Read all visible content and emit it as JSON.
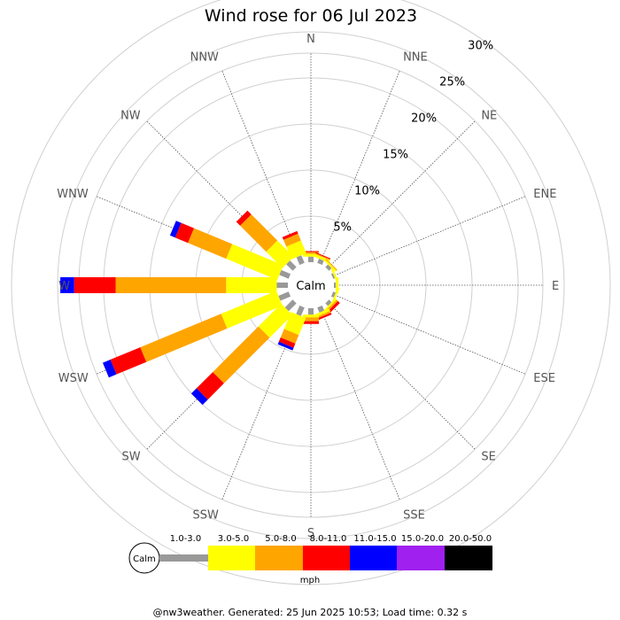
{
  "chart_data": {
    "type": "wind-rose",
    "title": "Wind rose for 06 Jul 2023",
    "directions": [
      "N",
      "NNE",
      "NE",
      "ENE",
      "E",
      "ESE",
      "SE",
      "SSE",
      "S",
      "SSW",
      "SW",
      "WSW",
      "W",
      "WNW",
      "NW",
      "NNW"
    ],
    "rings": [
      5,
      10,
      15,
      20,
      25,
      30
    ],
    "ring_labels": [
      "5%",
      "10%",
      "15%",
      "20%",
      "25%",
      "30%"
    ],
    "calm_label": "Calm",
    "unit": "mph",
    "speed_bins": [
      {
        "label": "1.0-3.0",
        "color": "#999999"
      },
      {
        "label": "3.0-5.0",
        "color": "#ffff00"
      },
      {
        "label": "5.0-8.0",
        "color": "#ffa500"
      },
      {
        "label": "8.0-11.0",
        "color": "#ff0000"
      },
      {
        "label": "11.0-15.0",
        "color": "#0000ff"
      },
      {
        "label": "15.0-20.0",
        "color": "#a020f0"
      },
      {
        "label": "20.0-50.0",
        "color": "#000000"
      }
    ],
    "series": [
      {
        "direction": "N",
        "values": [
          0.6,
          0.3,
          0.2,
          0.1,
          0,
          0,
          0
        ]
      },
      {
        "direction": "NNE",
        "values": [
          0.5,
          0.3,
          0.1,
          0.1,
          0,
          0,
          0
        ]
      },
      {
        "direction": "NE",
        "values": [
          0.4,
          0.2,
          0.1,
          0,
          0,
          0,
          0
        ]
      },
      {
        "direction": "ENE",
        "values": [
          0.2,
          0.2,
          0,
          0,
          0,
          0,
          0
        ]
      },
      {
        "direction": "E",
        "values": [
          0.2,
          0.3,
          0,
          0,
          0,
          0,
          0
        ]
      },
      {
        "direction": "ESE",
        "values": [
          0.3,
          0.2,
          0,
          0,
          0,
          0,
          0
        ]
      },
      {
        "direction": "SE",
        "values": [
          0.4,
          0.2,
          0.2,
          0.3,
          0,
          0,
          0
        ]
      },
      {
        "direction": "SSE",
        "values": [
          0.6,
          0.3,
          0.2,
          0.2,
          0,
          0,
          0
        ]
      },
      {
        "direction": "S",
        "values": [
          0.7,
          0.3,
          0.4,
          0.3,
          0,
          0,
          0
        ]
      },
      {
        "direction": "SSW",
        "values": [
          1.0,
          2.0,
          1.0,
          0.5,
          0.3,
          0,
          0
        ]
      },
      {
        "direction": "SW",
        "values": [
          1.2,
          3.5,
          7.0,
          2.5,
          0.8,
          0,
          0
        ]
      },
      {
        "direction": "WSW",
        "values": [
          1.2,
          6.5,
          9.5,
          3.5,
          0.9,
          0,
          0
        ]
      },
      {
        "direction": "W",
        "values": [
          1.2,
          5.5,
          12.0,
          4.5,
          1.5,
          0,
          0
        ]
      },
      {
        "direction": "WNW",
        "values": [
          1.1,
          6.0,
          4.5,
          1.5,
          0.6,
          0,
          0
        ]
      },
      {
        "direction": "NW",
        "values": [
          1.0,
          2.5,
          4.0,
          0.6,
          0,
          0,
          0
        ]
      },
      {
        "direction": "NNW",
        "values": [
          0.9,
          1.5,
          0.8,
          0.3,
          0,
          0,
          0
        ]
      }
    ]
  },
  "footer": "@nw3weather. Generated: 25 Jun 2025 10:53; Load time: 0.32 s"
}
